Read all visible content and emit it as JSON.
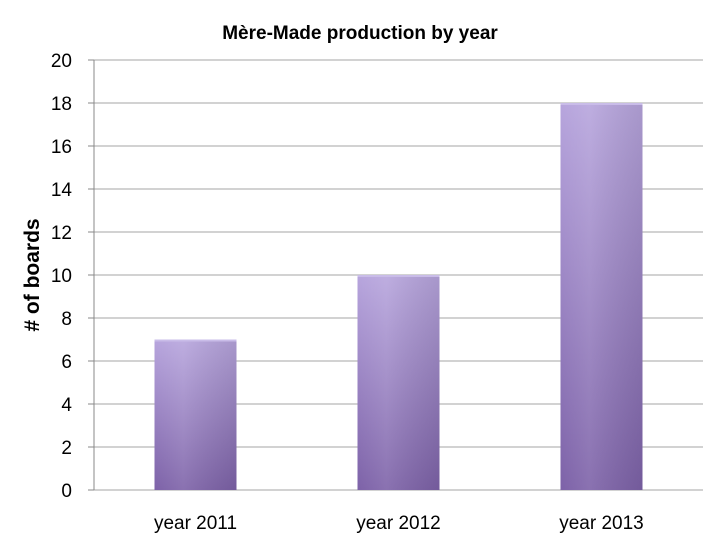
{
  "chart_data": {
    "type": "bar",
    "title": "Mère-Made production by year",
    "xlabel": "",
    "ylabel": "# of boards",
    "categories": [
      "year 2011",
      "year 2012",
      "year 2013"
    ],
    "values": [
      7,
      10,
      18
    ],
    "ylim": [
      0,
      20
    ],
    "yticks": [
      0,
      2,
      4,
      6,
      8,
      10,
      12,
      14,
      16,
      18,
      20
    ],
    "grid": true,
    "legend": "none",
    "colors": {
      "bar_top": "#b7a5dd",
      "bar_bottom": "#7d62a8",
      "grid": "#a6a6a6",
      "axis": "#888888"
    }
  }
}
